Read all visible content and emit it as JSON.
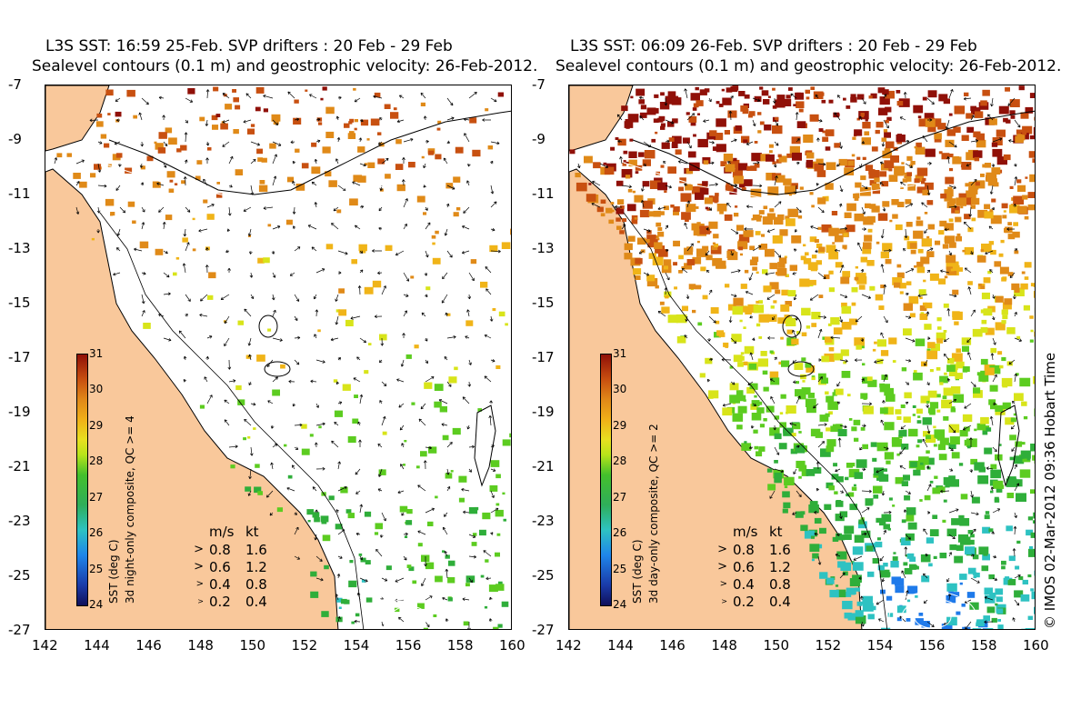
{
  "panels": [
    {
      "title_line1": "L3S SST: 16:59 25-Feb. SVP drifters : 20 Feb - 29 Feb",
      "title_line2": "Sealevel contours (0.1 m) and geostrophic velocity: 26-Feb-2012.",
      "colorbar_label": "SST (deg C)",
      "composite_label": "3d night-only composite, QC >= 4",
      "sst_coverage": "sparse"
    },
    {
      "title_line1": "L3S SST: 06:09 26-Feb. SVP drifters : 20 Feb - 29 Feb",
      "title_line2": "Sealevel contours (0.1 m) and geostrophic velocity: 26-Feb-2012.",
      "colorbar_label": "SST (deg C)",
      "composite_label": "3d day-only composite, QC >= 2",
      "sst_coverage": "dense"
    }
  ],
  "axes": {
    "x_ticks": [
      "142",
      "144",
      "146",
      "148",
      "150",
      "152",
      "154",
      "156",
      "158",
      "160"
    ],
    "y_ticks": [
      "-7",
      "-9",
      "-11",
      "-13",
      "-15",
      "-17",
      "-19",
      "-21",
      "-23",
      "-25",
      "-27"
    ],
    "x_range": [
      142,
      160
    ],
    "y_range": [
      -27,
      -7
    ]
  },
  "colorbar": {
    "ticks": [
      "31",
      "30",
      "29",
      "28",
      "27",
      "26",
      "25",
      "24"
    ],
    "range": [
      24,
      31
    ]
  },
  "velocity_legend": {
    "header_ms": "m/s",
    "header_kt": "kt",
    "rows": [
      {
        "ms": "0.8",
        "kt": "1.6"
      },
      {
        "ms": "0.6",
        "kt": "1.2"
      },
      {
        "ms": "0.4",
        "kt": "0.8"
      },
      {
        "ms": "0.2",
        "kt": "0.4"
      }
    ]
  },
  "copyright": "© IMOS 02-Mar-2012 09:36 Hobart Time",
  "colors": {
    "land": "#f9c89b",
    "ocean": "#ffffff",
    "sst_warm": "#c84c0c",
    "sst_mid": "#e8e020",
    "sst_cool": "#2fae3a",
    "sst_cold": "#1f6ee8"
  }
}
